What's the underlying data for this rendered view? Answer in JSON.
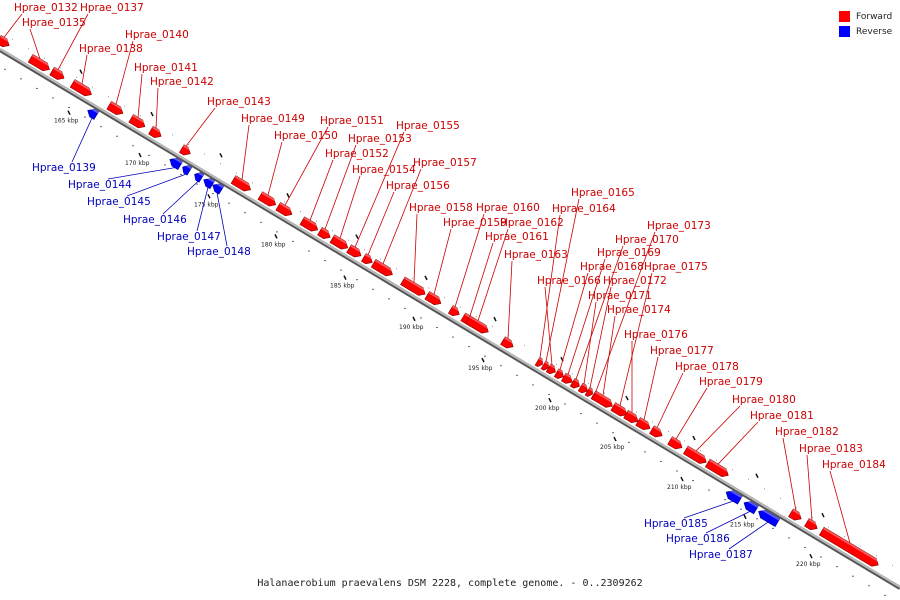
{
  "caption": "Halanaerobium praevalens DSM 2228, complete genome. - 0..2309262",
  "colors": {
    "forward": "#ff0000",
    "reverse": "#0000ff",
    "backbone": "#888888",
    "forward_label": "#cc0000",
    "reverse_label": "#0000bb"
  },
  "legend": [
    {
      "label": "Forward",
      "color": "#ff0000"
    },
    {
      "label": "Reverse",
      "color": "#0000ff"
    }
  ],
  "kbp_ticks": [
    "165 kbp",
    "170 kbp",
    "175 kbp",
    "180 kbp",
    "185 kbp",
    "190 kbp",
    "195 kbp",
    "200 kbp",
    "205 kbp",
    "210 kbp",
    "215 kbp",
    "220 kbp"
  ],
  "genes": [
    {
      "name": "Hprae_0132",
      "strand": "forward"
    },
    {
      "name": "Hprae_0135",
      "strand": "forward"
    },
    {
      "name": "Hprae_0137",
      "strand": "forward"
    },
    {
      "name": "Hprae_0138",
      "strand": "forward"
    },
    {
      "name": "Hprae_0139",
      "strand": "reverse"
    },
    {
      "name": "Hprae_0140",
      "strand": "forward"
    },
    {
      "name": "Hprae_0141",
      "strand": "forward"
    },
    {
      "name": "Hprae_0142",
      "strand": "forward"
    },
    {
      "name": "Hprae_0143",
      "strand": "forward"
    },
    {
      "name": "Hprae_0144",
      "strand": "reverse"
    },
    {
      "name": "Hprae_0145",
      "strand": "reverse"
    },
    {
      "name": "Hprae_0146",
      "strand": "reverse"
    },
    {
      "name": "Hprae_0147",
      "strand": "reverse"
    },
    {
      "name": "Hprae_0148",
      "strand": "reverse"
    },
    {
      "name": "Hprae_0149",
      "strand": "forward"
    },
    {
      "name": "Hprae_0150",
      "strand": "forward"
    },
    {
      "name": "Hprae_0151",
      "strand": "forward"
    },
    {
      "name": "Hprae_0152",
      "strand": "forward"
    },
    {
      "name": "Hprae_0153",
      "strand": "forward"
    },
    {
      "name": "Hprae_0154",
      "strand": "forward"
    },
    {
      "name": "Hprae_0155",
      "strand": "forward"
    },
    {
      "name": "Hprae_0156",
      "strand": "forward"
    },
    {
      "name": "Hprae_0157",
      "strand": "forward"
    },
    {
      "name": "Hprae_0158",
      "strand": "forward"
    },
    {
      "name": "Hprae_0159",
      "strand": "forward"
    },
    {
      "name": "Hprae_0160",
      "strand": "forward"
    },
    {
      "name": "Hprae_0161",
      "strand": "forward"
    },
    {
      "name": "Hprae_0162",
      "strand": "forward"
    },
    {
      "name": "Hprae_0163",
      "strand": "forward"
    },
    {
      "name": "Hprae_0164",
      "strand": "forward"
    },
    {
      "name": "Hprae_0165",
      "strand": "forward"
    },
    {
      "name": "Hprae_0166",
      "strand": "forward"
    },
    {
      "name": "Hprae_0168",
      "strand": "forward"
    },
    {
      "name": "Hprae_0169",
      "strand": "forward"
    },
    {
      "name": "Hprae_0170",
      "strand": "forward"
    },
    {
      "name": "Hprae_0171",
      "strand": "forward"
    },
    {
      "name": "Hprae_0172",
      "strand": "forward"
    },
    {
      "name": "Hprae_0173",
      "strand": "forward"
    },
    {
      "name": "Hprae_0174",
      "strand": "forward"
    },
    {
      "name": "Hprae_0175",
      "strand": "forward"
    },
    {
      "name": "Hprae_0176",
      "strand": "forward"
    },
    {
      "name": "Hprae_0177",
      "strand": "forward"
    },
    {
      "name": "Hprae_0178",
      "strand": "forward"
    },
    {
      "name": "Hprae_0179",
      "strand": "forward"
    },
    {
      "name": "Hprae_0180",
      "strand": "forward"
    },
    {
      "name": "Hprae_0181",
      "strand": "forward"
    },
    {
      "name": "Hprae_0182",
      "strand": "forward"
    },
    {
      "name": "Hprae_0183",
      "strand": "forward"
    },
    {
      "name": "Hprae_0184",
      "strand": "forward"
    },
    {
      "name": "Hprae_0185",
      "strand": "reverse"
    },
    {
      "name": "Hprae_0186",
      "strand": "reverse"
    },
    {
      "name": "Hprae_0187",
      "strand": "reverse"
    }
  ]
}
